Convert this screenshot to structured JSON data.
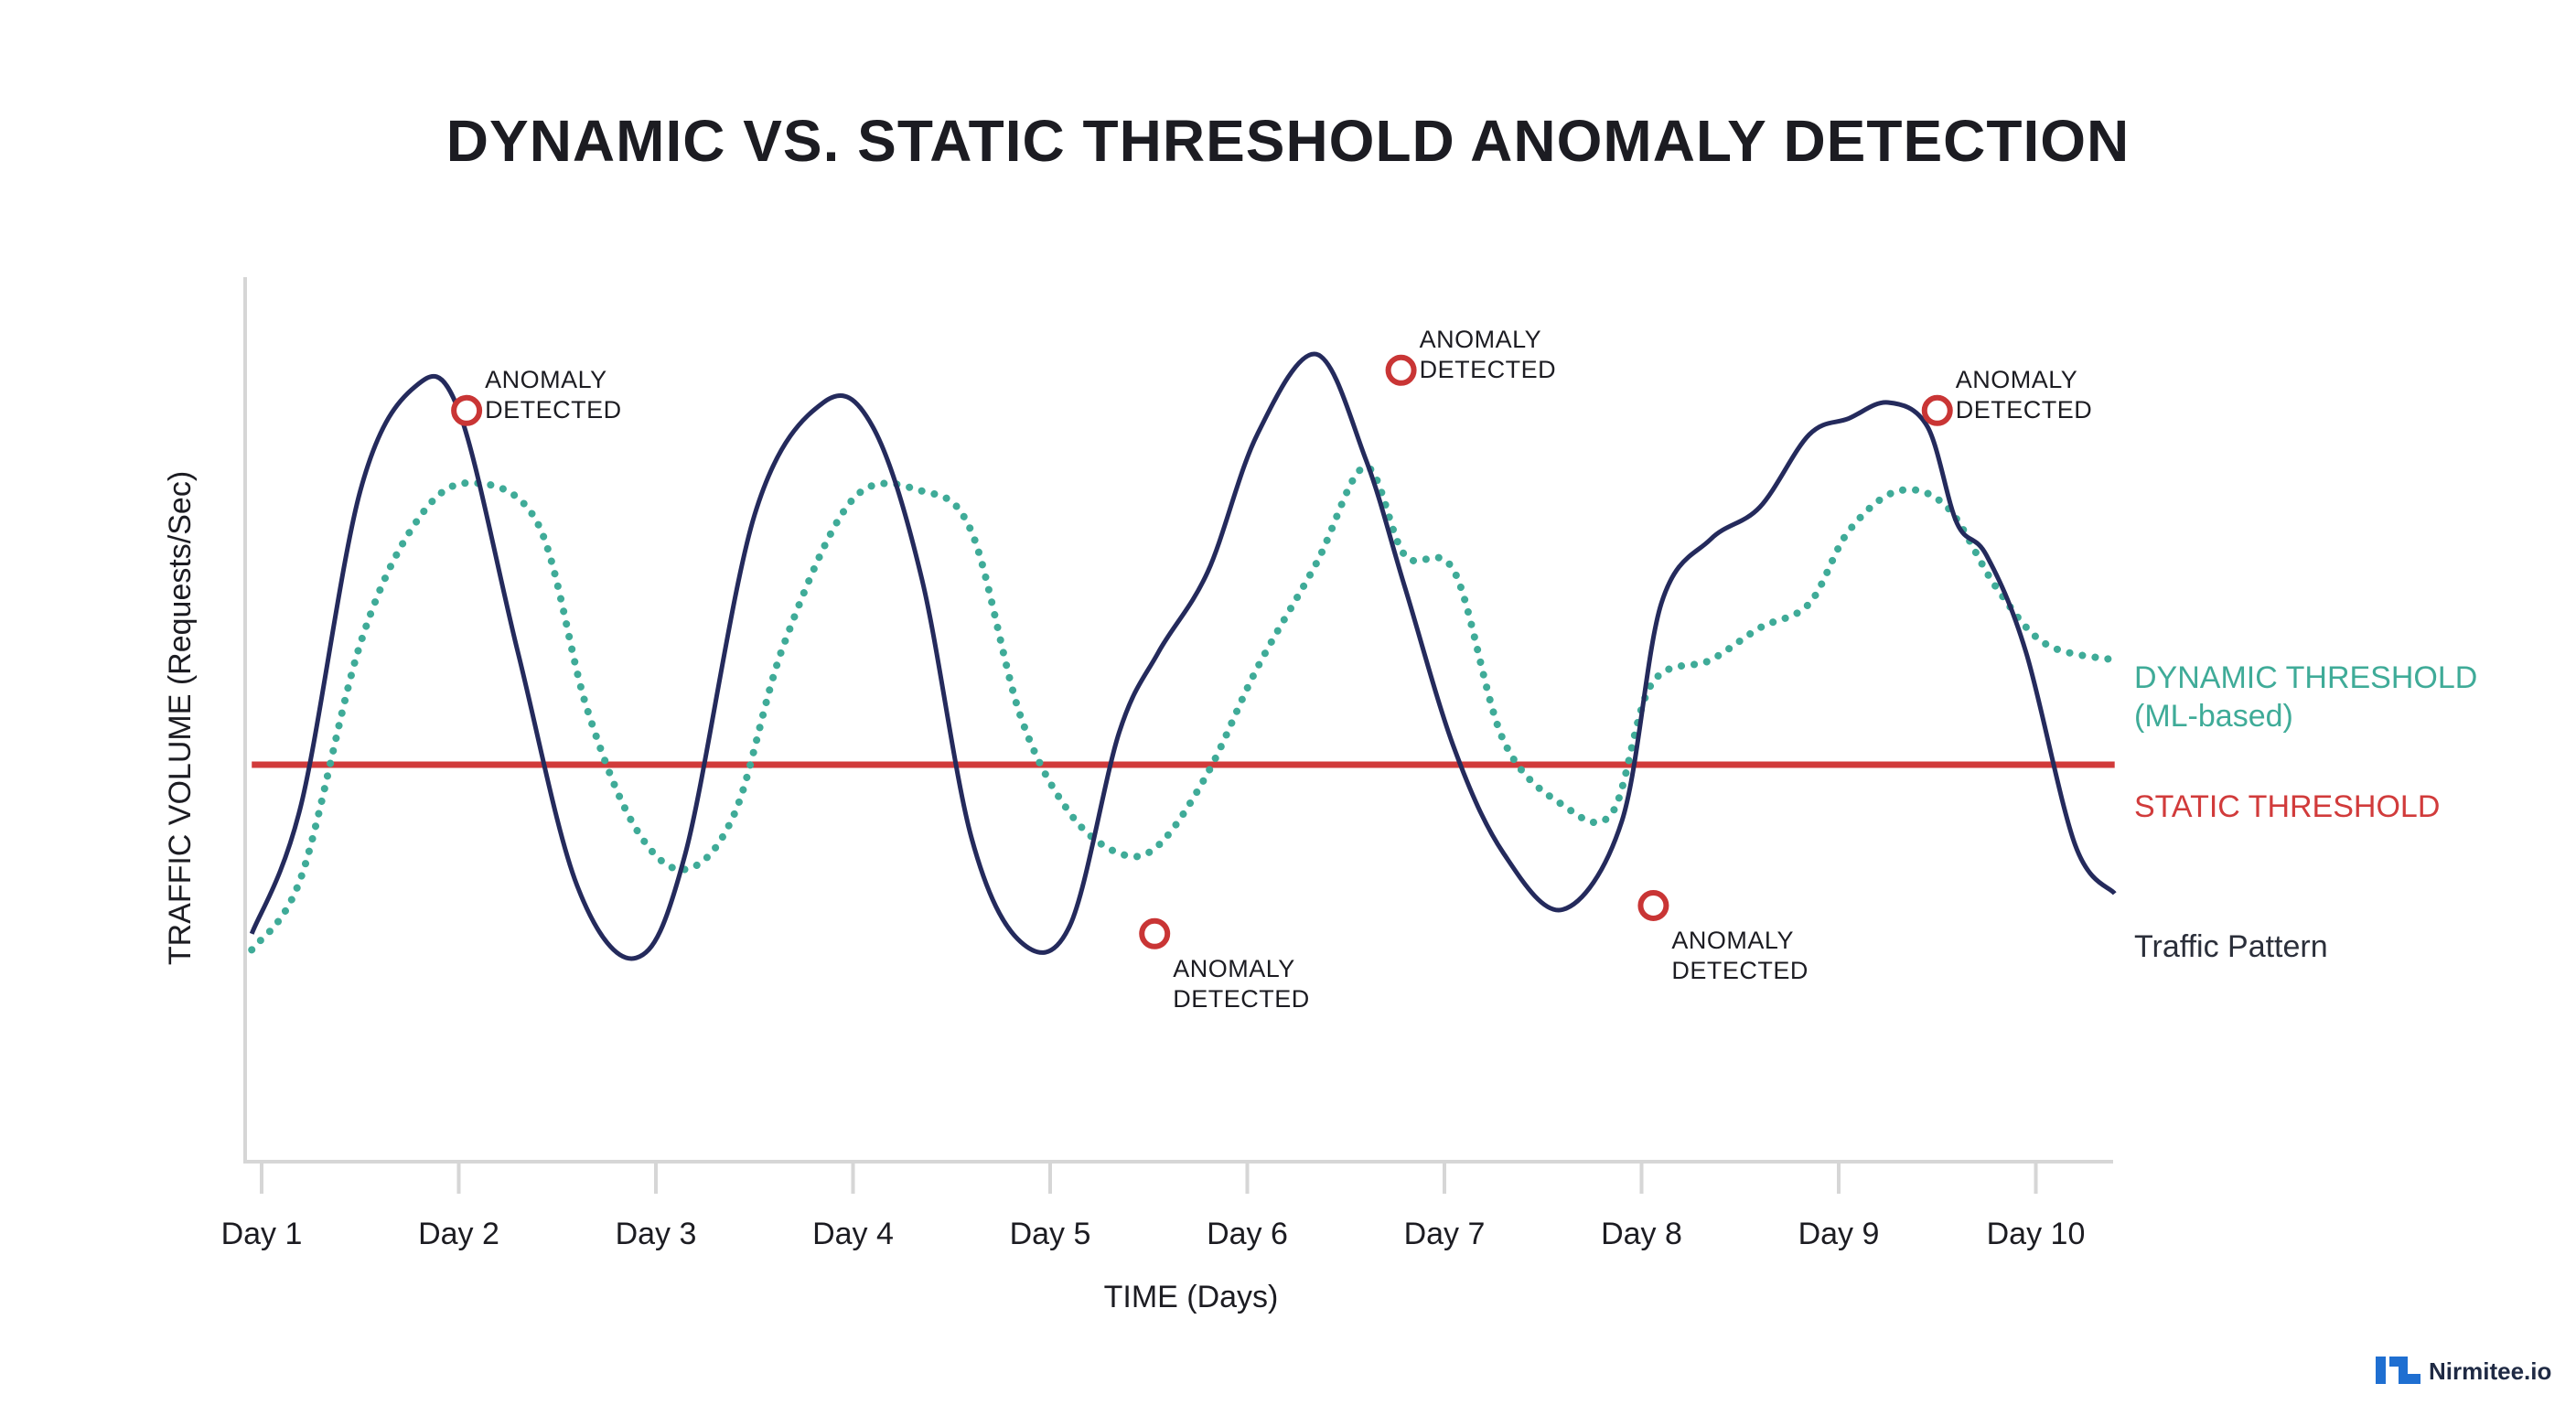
{
  "chart_data": {
    "type": "line",
    "title": "DYNAMIC VS. STATIC THRESHOLD ANOMALY DETECTION",
    "xlabel": "TIME (Days)",
    "ylabel": "TRAFFIC VOLUME (Requests/Sec)",
    "categories": [
      "Day 1",
      "Day 2",
      "Day 3",
      "Day 4",
      "Day 5",
      "Day 6",
      "Day 7",
      "Day 8",
      "Day 9",
      "Day 10"
    ],
    "xlim": [
      0.95,
      10.4
    ],
    "ylim": [
      0,
      100
    ],
    "grid": false,
    "legend_placement": "right",
    "series": [
      {
        "name": "Traffic Pattern",
        "color": "#242a5c",
        "style": "solid",
        "x": [
          0.95,
          1.2,
          1.5,
          1.78,
          2.0,
          2.3,
          2.6,
          2.9,
          3.15,
          3.5,
          3.85,
          4.1,
          4.35,
          4.6,
          4.85,
          5.1,
          5.35,
          5.55,
          5.8,
          6.05,
          6.35,
          6.6,
          6.8,
          7.05,
          7.3,
          7.6,
          7.9,
          8.1,
          8.35,
          8.6,
          8.85,
          9.05,
          9.25,
          9.45,
          9.6,
          9.75,
          9.95,
          10.2,
          10.4
        ],
        "y": [
          19,
          35,
          74,
          87,
          84,
          54,
          25,
          16,
          29,
          71,
          85,
          82,
          63,
          31,
          18,
          20,
          44,
          54,
          64,
          81,
          91,
          78,
          62,
          42,
          29,
          22,
          33,
          60,
          68,
          72,
          81,
          83,
          85,
          82,
          70,
          66,
          54,
          30,
          24
        ]
      },
      {
        "name": "DYNAMIC THRESHOLD (ML-based)",
        "color": "#3fab98",
        "style": "dotted",
        "x": [
          0.95,
          1.2,
          1.5,
          1.78,
          2.05,
          2.4,
          2.65,
          2.9,
          3.15,
          3.4,
          3.65,
          4.0,
          4.35,
          4.6,
          4.85,
          5.1,
          5.35,
          5.55,
          5.8,
          6.05,
          6.35,
          6.6,
          6.8,
          7.05,
          7.3,
          7.6,
          7.85,
          8.05,
          8.35,
          8.6,
          8.85,
          9.05,
          9.3,
          9.55,
          9.8,
          10.05,
          10.4
        ],
        "y": [
          17,
          26,
          55,
          70,
          75,
          70,
          47,
          32,
          27,
          34,
          55,
          73,
          74,
          69,
          46,
          34,
          29,
          30,
          39,
          52,
          65,
          77,
          66,
          64,
          43,
          35,
          34,
          50,
          53,
          57,
          60,
          69,
          74,
          72,
          62,
          55,
          53
        ]
      },
      {
        "name": "STATIC THRESHOLD",
        "color": "#d13b3b",
        "style": "solid",
        "x": [
          0.95,
          10.4
        ],
        "y": [
          40,
          40
        ]
      }
    ],
    "annotations": [
      {
        "text": [
          "ANOMALY",
          "DETECTED"
        ],
        "x": 2.04,
        "y": 84,
        "label_position": "right-above"
      },
      {
        "text": [
          "ANOMALY",
          "DETECTED"
        ],
        "x": 5.53,
        "y": 19,
        "label_position": "right-below"
      },
      {
        "text": [
          "ANOMALY",
          "DETECTED"
        ],
        "x": 6.78,
        "y": 89,
        "label_position": "right-above"
      },
      {
        "text": [
          "ANOMALY",
          "DETECTED"
        ],
        "x": 8.06,
        "y": 22.5,
        "label_position": "right-below"
      },
      {
        "text": [
          "ANOMALY",
          "DETECTED"
        ],
        "x": 9.5,
        "y": 84,
        "label_position": "right-above"
      }
    ],
    "legend": [
      {
        "text": [
          "DYNAMIC THRESHOLD",
          "(ML-based)"
        ],
        "color": "#3fab98"
      },
      {
        "text": [
          "STATIC THRESHOLD"
        ],
        "color": "#d13b3b"
      },
      {
        "text": [
          "Traffic Pattern"
        ],
        "color": "#2b2f3a"
      }
    ]
  },
  "brand": {
    "name": "Nirmitee.io",
    "logo_icon": "nirmitee-logo-icon",
    "logo_color": "#1f6fd1"
  }
}
